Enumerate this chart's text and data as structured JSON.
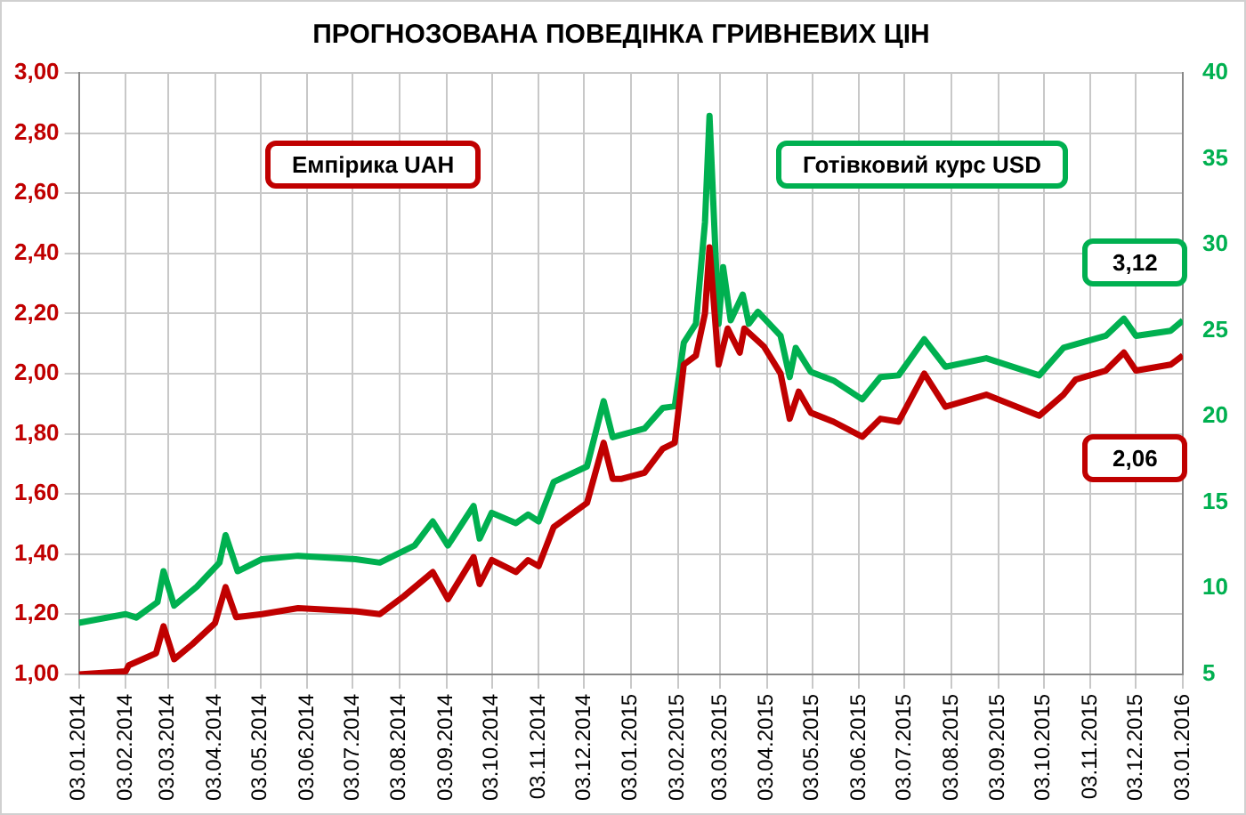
{
  "chart_data": {
    "type": "line",
    "title": "ПРОГНОЗОВАНА ПОВЕДІНКА ГРИВНЕВИХ ЦІН",
    "legend": "top",
    "grid": true,
    "xlim": [
      "2014-01-03",
      "2016-01-03"
    ],
    "xticks": [
      {
        "value": "2014-01-03",
        "label": "03.01.2014"
      },
      {
        "value": "2014-02-03",
        "label": "03.02.2014"
      },
      {
        "value": "2014-03-03",
        "label": "03.03.2014"
      },
      {
        "value": "2014-04-03",
        "label": "03.04.2014"
      },
      {
        "value": "2014-05-03",
        "label": "03.05.2014"
      },
      {
        "value": "2014-06-03",
        "label": "03.06.2014"
      },
      {
        "value": "2014-07-03",
        "label": "03.07.2014"
      },
      {
        "value": "2014-08-03",
        "label": "03.08.2014"
      },
      {
        "value": "2014-09-03",
        "label": "03.09.2014"
      },
      {
        "value": "2014-10-03",
        "label": "03.10.2014"
      },
      {
        "value": "2014-11-03",
        "label": "03.11.2014"
      },
      {
        "value": "2014-12-03",
        "label": "03.12.2014"
      },
      {
        "value": "2015-01-03",
        "label": "03.01.2015"
      },
      {
        "value": "2015-02-03",
        "label": "03.02.2015"
      },
      {
        "value": "2015-03-03",
        "label": "03.03.2015"
      },
      {
        "value": "2015-04-03",
        "label": "03.04.2015"
      },
      {
        "value": "2015-05-03",
        "label": "03.05.2015"
      },
      {
        "value": "2015-06-03",
        "label": "03.06.2015"
      },
      {
        "value": "2015-07-03",
        "label": "03.07.2015"
      },
      {
        "value": "2015-08-03",
        "label": "03.08.2015"
      },
      {
        "value": "2015-09-03",
        "label": "03.09.2015"
      },
      {
        "value": "2015-10-03",
        "label": "03.10.2015"
      },
      {
        "value": "2015-11-03",
        "label": "03.11.2015"
      },
      {
        "value": "2015-12-03",
        "label": "03.12.2015"
      },
      {
        "value": "2016-01-03",
        "label": "03.01.2016"
      }
    ],
    "ylim": [
      1,
      3
    ],
    "yticks": [
      {
        "value": 1,
        "label": "1,00"
      },
      {
        "value": 1.2,
        "label": "1,20"
      },
      {
        "value": 1.4,
        "label": "1,40"
      },
      {
        "value": 1.6,
        "label": "1,60"
      },
      {
        "value": 1.8,
        "label": "1,80"
      },
      {
        "value": 2,
        "label": "2,00"
      },
      {
        "value": 2.2,
        "label": "2,20"
      },
      {
        "value": 2.4,
        "label": "2,40"
      },
      {
        "value": 2.6,
        "label": "2,60"
      },
      {
        "value": 2.8,
        "label": "2,80"
      },
      {
        "value": 3,
        "label": "3,00"
      }
    ],
    "y2lim": [
      5,
      40
    ],
    "y2ticks": [
      5,
      10,
      15,
      20,
      25,
      30,
      35,
      40
    ],
    "annotations": [
      "3,12",
      "2,06"
    ],
    "series": [
      {
        "name": "Емпірика UAH",
        "color": "#c00000",
        "x": [
          "2014-01-03",
          "2014-02-03",
          "2014-02-05",
          "2014-02-23",
          "2014-02-28",
          "2014-03-07",
          "2014-03-19",
          "2014-04-03",
          "2014-04-10",
          "2014-04-17",
          "2014-05-04",
          "2014-05-28",
          "2014-07-05",
          "2014-07-21",
          "2014-08-06",
          "2014-08-25",
          "2014-09-04",
          "2014-09-21",
          "2014-09-25",
          "2014-10-03",
          "2014-10-19",
          "2014-10-27",
          "2014-11-03",
          "2014-11-13",
          "2014-12-05",
          "2014-12-16",
          "2014-12-22",
          "2014-12-28",
          "2015-01-12",
          "2015-01-24",
          "2015-02-01",
          "2015-02-07",
          "2015-02-15",
          "2015-02-21",
          "2015-02-24",
          "2015-03-02",
          "2015-03-08",
          "2015-03-16",
          "2015-03-19",
          "2015-04-01",
          "2015-04-12",
          "2015-04-18",
          "2015-04-24",
          "2015-05-02",
          "2015-05-17",
          "2015-06-05",
          "2015-06-17",
          "2015-06-29",
          "2015-07-16",
          "2015-07-30",
          "2015-08-26",
          "2015-09-30",
          "2015-10-16",
          "2015-10-24",
          "2015-11-13",
          "2015-11-25",
          "2015-12-03",
          "2015-12-26",
          "2016-01-03"
        ],
        "values": [
          1.0,
          1.01,
          1.03,
          1.07,
          1.16,
          1.05,
          1.1,
          1.17,
          1.29,
          1.19,
          1.2,
          1.22,
          1.21,
          1.2,
          1.26,
          1.34,
          1.25,
          1.39,
          1.3,
          1.38,
          1.34,
          1.38,
          1.36,
          1.49,
          1.57,
          1.77,
          1.65,
          1.65,
          1.67,
          1.75,
          1.77,
          2.03,
          2.06,
          2.2,
          2.42,
          2.03,
          2.15,
          2.07,
          2.15,
          2.09,
          2.0,
          1.85,
          1.94,
          1.87,
          1.84,
          1.79,
          1.85,
          1.84,
          2.0,
          1.89,
          1.93,
          1.86,
          1.93,
          1.98,
          2.01,
          2.07,
          2.01,
          2.03,
          2.06
        ]
      },
      {
        "name": "Готівковий курс USD",
        "color": "#00b050",
        "axis": "y2",
        "x": [
          "2014-01-03",
          "2014-02-03",
          "2014-02-10",
          "2014-02-24",
          "2014-02-28",
          "2014-03-07",
          "2014-03-22",
          "2014-04-06",
          "2014-04-10",
          "2014-04-18",
          "2014-05-04",
          "2014-05-28",
          "2014-07-05",
          "2014-07-21",
          "2014-08-13",
          "2014-08-25",
          "2014-09-04",
          "2014-09-21",
          "2014-09-25",
          "2014-10-03",
          "2014-10-19",
          "2014-10-27",
          "2014-11-03",
          "2014-11-13",
          "2014-12-05",
          "2014-12-16",
          "2014-12-22",
          "2015-01-12",
          "2015-01-24",
          "2015-02-01",
          "2015-02-07",
          "2015-02-15",
          "2015-02-21",
          "2015-02-24",
          "2015-03-02",
          "2015-03-05",
          "2015-03-10",
          "2015-03-18",
          "2015-03-22",
          "2015-03-28",
          "2015-04-12",
          "2015-04-18",
          "2015-04-22",
          "2015-05-02",
          "2015-05-17",
          "2015-06-05",
          "2015-06-17",
          "2015-06-29",
          "2015-07-16",
          "2015-07-30",
          "2015-08-26",
          "2015-09-30",
          "2015-10-16",
          "2015-11-13",
          "2015-11-25",
          "2015-12-03",
          "2015-12-26",
          "2016-01-03"
        ],
        "values": [
          8.0,
          8.5,
          8.3,
          9.2,
          11.0,
          9.0,
          10.1,
          11.5,
          13.1,
          11.0,
          11.7,
          11.9,
          11.7,
          11.5,
          12.5,
          13.9,
          12.5,
          14.8,
          12.9,
          14.4,
          13.8,
          14.3,
          13.9,
          16.2,
          17.1,
          20.9,
          18.8,
          19.3,
          20.5,
          20.6,
          24.3,
          25.4,
          31.3,
          37.5,
          25.4,
          28.7,
          25.6,
          27.1,
          25.4,
          26.1,
          24.7,
          22.3,
          24.0,
          22.6,
          22.1,
          21.0,
          22.3,
          22.4,
          24.5,
          22.9,
          23.4,
          22.4,
          24.0,
          24.7,
          25.7,
          24.7,
          25.0,
          25.6
        ]
      }
    ]
  }
}
